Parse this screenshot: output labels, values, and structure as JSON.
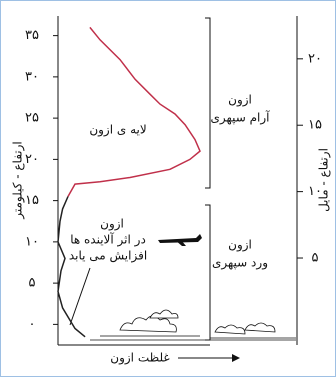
{
  "chart_data": {
    "type": "line",
    "ylabel": "ارتفاع - کیلومتر",
    "y2label": "ارتفاع - مایل",
    "xlabel": "غلظت ازون",
    "xlim": [
      0,
      100
    ],
    "ylim": [
      -2.5,
      37.5
    ],
    "yticks": [
      {
        "value": 0,
        "label": "۰"
      },
      {
        "value": 5,
        "label": "۵"
      },
      {
        "value": 10,
        "label": "۱۰"
      },
      {
        "value": 15,
        "label": "۱۵"
      },
      {
        "value": 20,
        "label": "۲۰"
      },
      {
        "value": 25,
        "label": "۲۵"
      },
      {
        "value": 30,
        "label": "۳۰"
      },
      {
        "value": 35,
        "label": "۳۵"
      }
    ],
    "y2lim": [
      -1.55,
      23.3
    ],
    "y2ticks": [
      {
        "value": 5,
        "label": "۵"
      },
      {
        "value": 10,
        "label": "۱۰"
      },
      {
        "value": 15,
        "label": "۱۵"
      },
      {
        "value": 20,
        "label": "۲۰"
      }
    ],
    "series": [
      {
        "color": "#c0304a",
        "x": [
          21,
          27.6,
          40.8,
          50.7,
          60.5,
          67.1,
          77,
          83.6,
          90.1,
          93.4,
          86.8,
          73.7,
          47.4,
          27.6,
          11.2,
          6.6
        ],
        "values": [
          36,
          34.5,
          32.1,
          29.7,
          27.9,
          26.7,
          25.5,
          24.2,
          22.4,
          21,
          20,
          18.8,
          17.8,
          17.3,
          17,
          15.5
        ]
      },
      {
        "color": "#222222",
        "x": [
          6.6,
          3,
          1.3,
          0,
          4.6,
          2,
          0,
          3,
          7.9,
          11.2,
          17.8
        ],
        "values": [
          15.5,
          14,
          12.5,
          10,
          8,
          6.5,
          4,
          2,
          0.5,
          -0.5,
          -1.5
        ]
      }
    ],
    "annotations": [
      {
        "text": "لایه ی ازون"
      },
      {
        "text": "ازون"
      },
      {
        "text": "آرام سپهری"
      },
      {
        "text": "ازون"
      },
      {
        "text": "ورد سپهری"
      },
      {
        "text": "ازون"
      },
      {
        "text": "در اثر آلاینده ها"
      },
      {
        "text": "افزایش می یابد"
      }
    ]
  }
}
